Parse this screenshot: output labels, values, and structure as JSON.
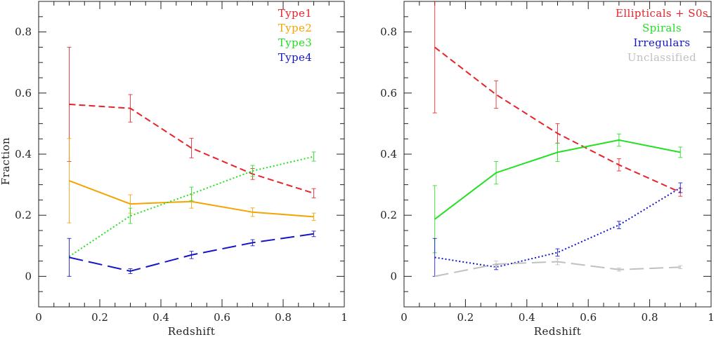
{
  "chart_data": [
    {
      "type": "line",
      "xlabel": "Redshift",
      "ylabel": "Fraction",
      "xlim": [
        0,
        1
      ],
      "ylim": [
        -0.1,
        0.9
      ],
      "xticks": [
        "0",
        "0.2",
        "0.4",
        "0.6",
        "0.8",
        "1"
      ],
      "yticks": [
        "0",
        "0.2",
        "0.4",
        "0.6",
        "0.8"
      ],
      "legend_position": "top-right",
      "series": [
        {
          "name": "Type1",
          "color": "#e8232a",
          "dash": "short-dash",
          "x": [
            0.1,
            0.3,
            0.5,
            0.7,
            0.9
          ],
          "y": [
            0.563,
            0.55,
            0.42,
            0.335,
            0.272
          ],
          "err": [
            0.187,
            0.045,
            0.032,
            0.018,
            0.015
          ]
        },
        {
          "name": "Type2",
          "color": "#f5a300",
          "dash": "solid",
          "x": [
            0.1,
            0.3,
            0.5,
            0.7,
            0.9
          ],
          "y": [
            0.313,
            0.237,
            0.245,
            0.21,
            0.195
          ],
          "err": [
            0.138,
            0.03,
            0.022,
            0.014,
            0.012
          ]
        },
        {
          "name": "Type3",
          "color": "#22e022",
          "dash": "dotted",
          "x": [
            0.1,
            0.3,
            0.5,
            0.7,
            0.9
          ],
          "y": [
            0.065,
            0.198,
            0.27,
            0.345,
            0.392
          ],
          "err": [
            0.0,
            0.025,
            0.022,
            0.018,
            0.015
          ]
        },
        {
          "name": "Type4",
          "color": "#1515c8",
          "dash": "long-dash",
          "x": [
            0.1,
            0.3,
            0.5,
            0.7,
            0.9
          ],
          "y": [
            0.062,
            0.017,
            0.07,
            0.11,
            0.139
          ],
          "err": [
            0.062,
            0.008,
            0.012,
            0.01,
            0.009
          ]
        }
      ]
    },
    {
      "type": "line",
      "xlabel": "Redshift",
      "ylabel": "",
      "xlim": [
        0,
        1
      ],
      "ylim": [
        -0.1,
        0.9
      ],
      "xticks": [
        "0",
        "0.2",
        "0.4",
        "0.6",
        "0.8",
        "1"
      ],
      "yticks": [
        "0",
        "0.2",
        "0.4",
        "0.6",
        "0.8"
      ],
      "legend_position": "top-right",
      "series": [
        {
          "name": "Ellipticals + S0s",
          "color": "#e8232a",
          "dash": "short-dash",
          "x": [
            0.1,
            0.3,
            0.5,
            0.7,
            0.9
          ],
          "y": [
            0.75,
            0.595,
            0.468,
            0.365,
            0.275
          ],
          "err": [
            0.215,
            0.045,
            0.032,
            0.02,
            0.013
          ]
        },
        {
          "name": "Spirals",
          "color": "#22e022",
          "dash": "solid",
          "x": [
            0.1,
            0.3,
            0.5,
            0.7,
            0.9
          ],
          "y": [
            0.187,
            0.339,
            0.406,
            0.446,
            0.406
          ],
          "err": [
            0.11,
            0.037,
            0.03,
            0.02,
            0.017
          ]
        },
        {
          "name": "Irregulars",
          "color": "#1515c8",
          "dash": "dotted",
          "x": [
            0.1,
            0.3,
            0.5,
            0.7,
            0.9
          ],
          "y": [
            0.062,
            0.03,
            0.078,
            0.168,
            0.29
          ],
          "err": [
            0.062,
            0.008,
            0.012,
            0.012,
            0.016
          ]
        },
        {
          "name": "Unclassified",
          "color": "#c0c0c0",
          "dash": "long-dash",
          "x": [
            0.1,
            0.3,
            0.5,
            0.7,
            0.9
          ],
          "y": [
            0.0,
            0.04,
            0.048,
            0.022,
            0.03
          ],
          "err": [
            0.0,
            0.01,
            0.01,
            0.005,
            0.005
          ]
        }
      ]
    }
  ]
}
